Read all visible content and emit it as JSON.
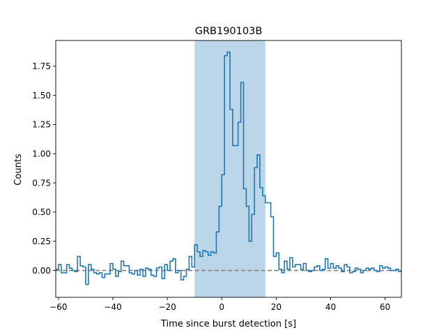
{
  "chart_data": {
    "type": "line",
    "style": "step",
    "title": "GRB190103B",
    "xlabel": "Time since burst detection [s]",
    "ylabel": "Counts",
    "xlim": [
      -61,
      66
    ],
    "ylim": [
      -0.23,
      1.97
    ],
    "xticks": [
      -60,
      -40,
      -20,
      0,
      20,
      40,
      60
    ],
    "xtick_labels": [
      "−60",
      "−40",
      "−20",
      "0",
      "20",
      "40",
      "60"
    ],
    "yticks": [
      0.0,
      0.25,
      0.5,
      0.75,
      1.0,
      1.25,
      1.5,
      1.75
    ],
    "ytick_labels": [
      "0.00",
      "0.25",
      "0.50",
      "0.75",
      "1.00",
      "1.25",
      "1.50",
      "1.75"
    ],
    "grid": false,
    "baseline": {
      "y": 0,
      "style": "dashed",
      "color": "#808080"
    },
    "highlight": {
      "x_start": -10,
      "x_end": 16,
      "color": "#1f77b4",
      "opacity": 0.3
    },
    "series": [
      {
        "color": "#1f77b4",
        "bin_width": 1,
        "x_start": -61,
        "values": [
          0.01,
          0.05,
          -0.02,
          -0.02,
          0.05,
          0.02,
          0.0,
          -0.01,
          0.12,
          0.04,
          0.03,
          -0.12,
          0.05,
          0.01,
          -0.02,
          -0.03,
          -0.02,
          -0.06,
          -0.03,
          -0.03,
          0.06,
          0.01,
          -0.05,
          -0.01,
          0.08,
          0.04,
          0.04,
          -0.02,
          -0.03,
          0.0,
          -0.04,
          0.01,
          -0.05,
          0.02,
          0.01,
          -0.04,
          -0.05,
          0.02,
          0.03,
          -0.07,
          0.05,
          0.0,
          0.08,
          0.1,
          -0.02,
          0.0,
          -0.08,
          -0.05,
          0.01,
          0.12,
          0.03,
          0.22,
          0.16,
          0.12,
          0.17,
          0.16,
          0.13,
          0.16,
          0.15,
          0.33,
          0.55,
          0.82,
          1.84,
          1.87,
          1.38,
          1.07,
          1.07,
          1.27,
          1.61,
          0.7,
          0.55,
          0.25,
          0.48,
          0.88,
          0.99,
          0.71,
          0.64,
          0.58,
          0.58,
          0.46,
          0.12,
          0.15,
          0.01,
          -0.02,
          0.08,
          0.01,
          0.11,
          0.03,
          0.05,
          0.05,
          0.01,
          0.06,
          0.0,
          -0.01,
          0.0,
          0.03,
          0.04,
          0.0,
          0.01,
          0.1,
          0.02,
          0.06,
          0.02,
          0.04,
          0.02,
          -0.01,
          0.05,
          0.03,
          -0.02,
          -0.01,
          0.02,
          0.01,
          -0.02,
          0.0,
          0.02,
          0.01,
          0.02,
          0.0,
          -0.01,
          0.04,
          0.02,
          0.03,
          0.02,
          0.0,
          0.0,
          0.01,
          -0.01
        ]
      }
    ]
  }
}
